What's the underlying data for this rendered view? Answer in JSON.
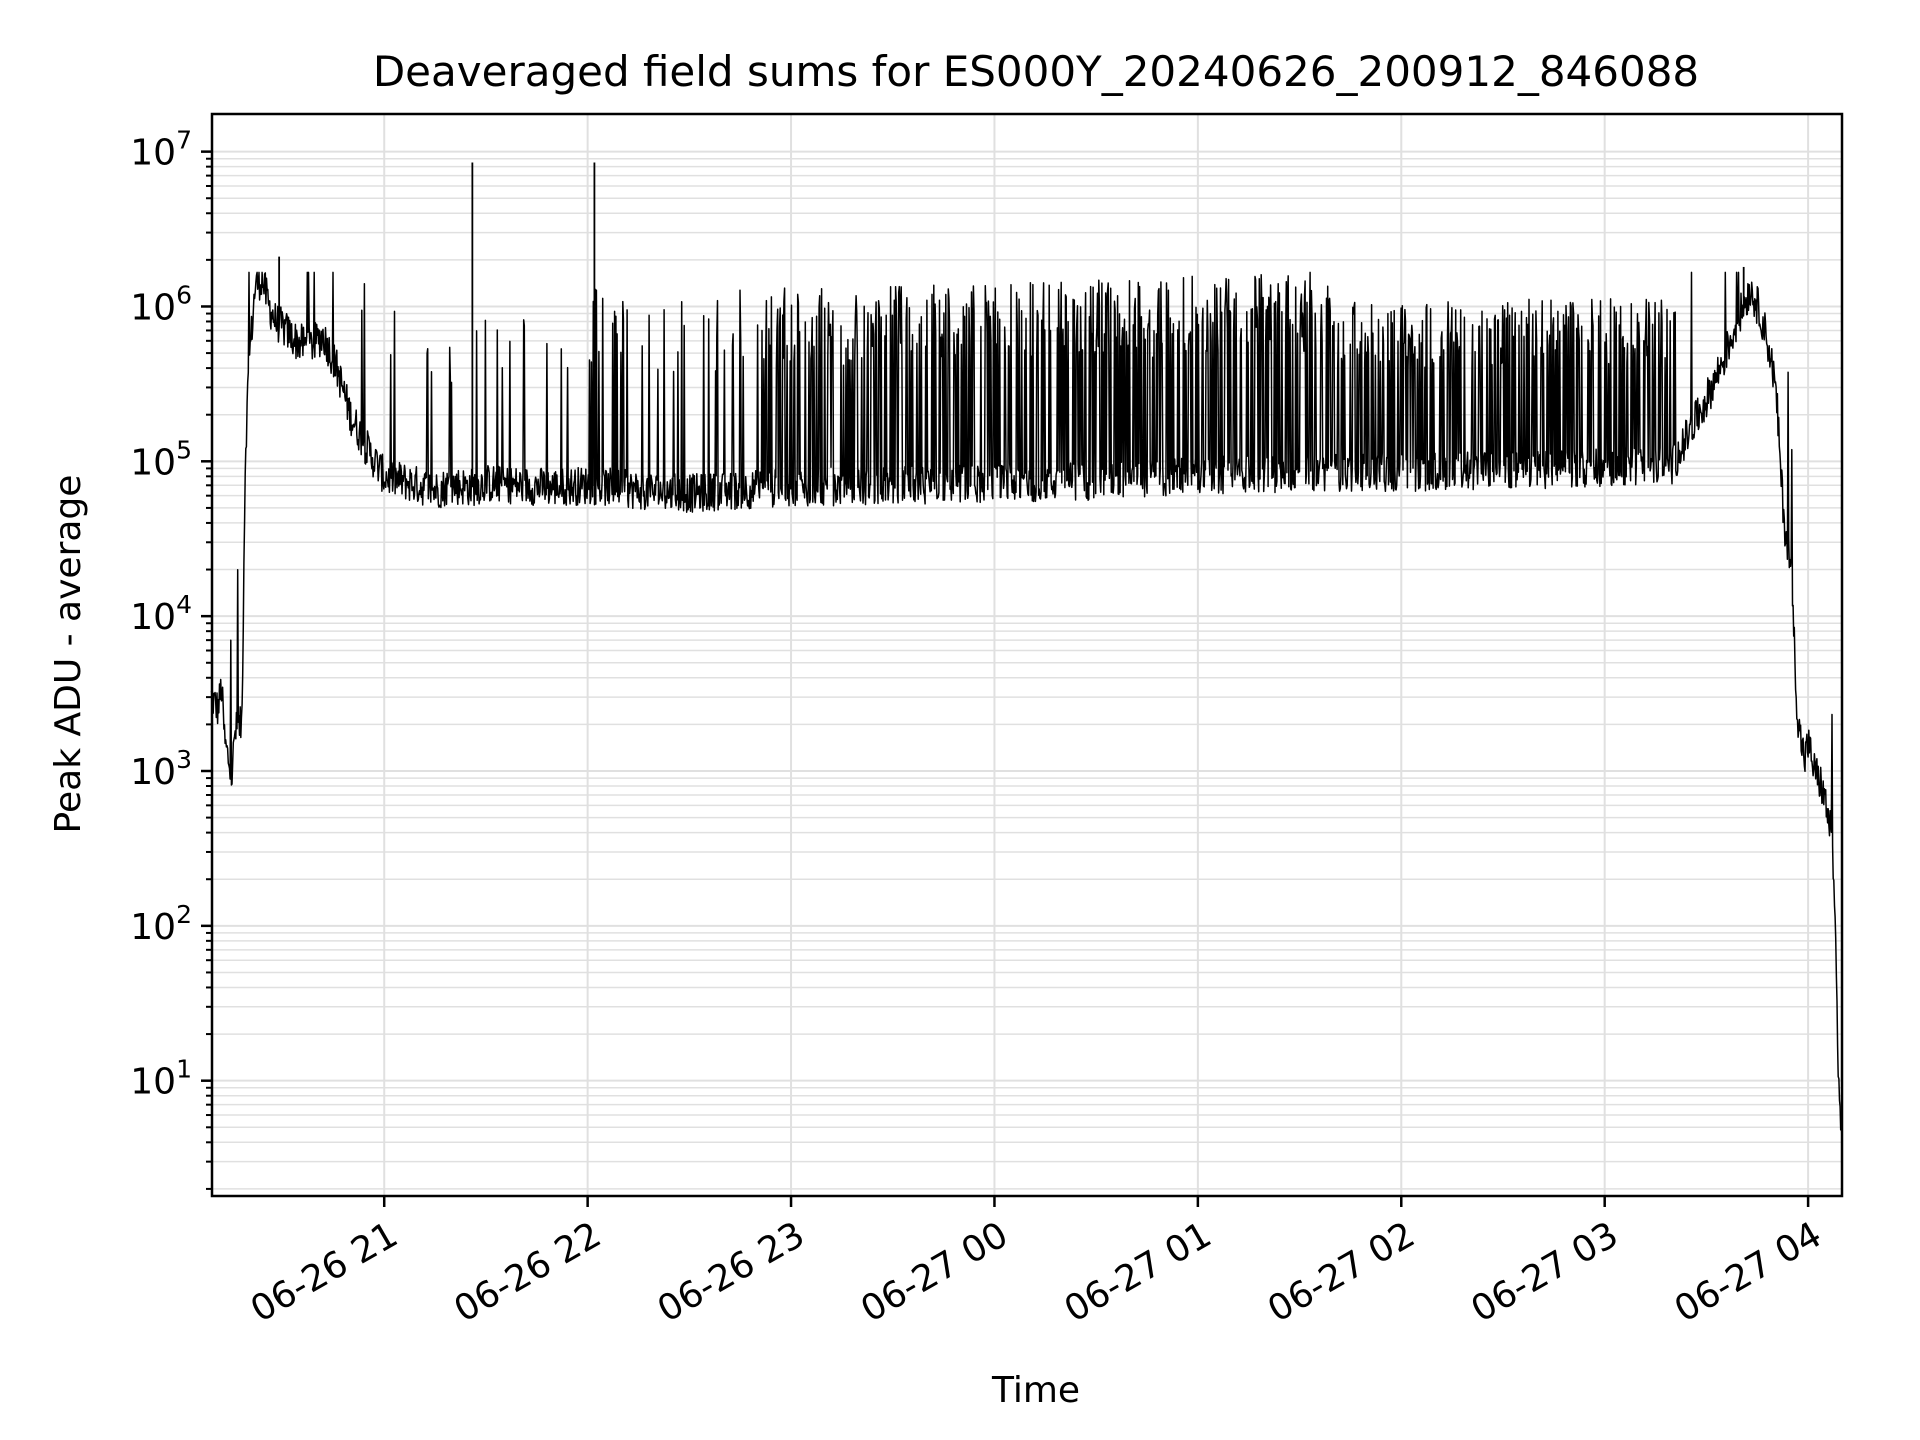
{
  "chart_data": {
    "type": "line",
    "title": "Deaveraged field sums for ES000Y_20240626_200912_846088",
    "xlabel": "Time",
    "ylabel": "Peak ADU - average",
    "xlim": [
      "2024-06-26 20:09:12",
      "2024-06-27 04:10:00"
    ],
    "ylim": [
      1.8,
      17500000
    ],
    "yscale": "log",
    "grid": true,
    "line_color": "#000000",
    "grid_color": "#e0e0e0",
    "x_tick_values": [
      "2024-06-26 21:00",
      "2024-06-26 22:00",
      "2024-06-26 23:00",
      "2024-06-27 00:00",
      "2024-06-27 01:00",
      "2024-06-27 02:00",
      "2024-06-27 03:00",
      "2024-06-27 04:00"
    ],
    "x_tick_labels": [
      "06-26 21",
      "06-26 22",
      "06-26 23",
      "06-27 00",
      "06-27 01",
      "06-27 02",
      "06-27 03",
      "06-27 04"
    ],
    "y_tick_values": [
      10,
      100,
      1000,
      10000,
      100000,
      1000000,
      10000000
    ],
    "y_tick_labels": [
      {
        "base": "10",
        "exp": "1"
      },
      {
        "base": "10",
        "exp": "2"
      },
      {
        "base": "10",
        "exp": "3"
      },
      {
        "base": "10",
        "exp": "4"
      },
      {
        "base": "10",
        "exp": "5"
      },
      {
        "base": "10",
        "exp": "6"
      },
      {
        "base": "10",
        "exp": "7"
      }
    ],
    "series": [
      {
        "x": [
          "2024-06-26 20:09",
          "2024-06-26 20:11",
          "2024-06-26 20:12",
          "2024-06-26 20:13",
          "2024-06-26 20:14",
          "2024-06-26 20:15",
          "2024-06-26 20:16",
          "2024-06-26 20:18",
          "2024-06-26 20:19",
          "2024-06-26 20:20",
          "2024-06-26 20:22",
          "2024-06-26 20:24",
          "2024-06-26 20:26",
          "2024-06-26 20:28",
          "2024-06-26 20:31",
          "2024-06-26 20:34",
          "2024-06-26 20:38",
          "2024-06-26 20:42",
          "2024-06-26 20:46",
          "2024-06-26 20:50",
          "2024-06-26 20:55",
          "2024-06-26 21:00",
          "2024-06-26 21:05",
          "2024-06-26 21:10",
          "2024-06-26 21:15",
          "2024-06-26 21:20",
          "2024-06-26 21:26",
          "2024-06-26 21:30",
          "2024-06-26 21:40",
          "2024-06-26 21:50",
          "2024-06-26 22:00",
          "2024-06-26 22:15",
          "2024-06-26 22:30",
          "2024-06-26 22:45",
          "2024-06-26 23:00",
          "2024-06-26 23:30",
          "2024-06-27 00:00",
          "2024-06-27 00:30",
          "2024-06-27 01:00",
          "2024-06-27 01:30",
          "2024-06-27 02:00",
          "2024-06-27 02:30",
          "2024-06-27 03:00",
          "2024-06-27 03:20",
          "2024-06-27 03:30",
          "2024-06-27 03:35",
          "2024-06-27 03:40",
          "2024-06-27 03:43",
          "2024-06-27 03:46",
          "2024-06-27 03:48",
          "2024-06-27 03:50",
          "2024-06-27 03:51",
          "2024-06-27 03:52",
          "2024-06-27 03:53",
          "2024-06-27 03:55",
          "2024-06-27 03:57",
          "2024-06-27 03:59",
          "2024-06-27 04:00",
          "2024-06-27 04:02",
          "2024-06-27 04:04",
          "2024-06-27 04:06",
          "2024-06-27 04:07",
          "2024-06-27 04:08",
          "2024-06-27 04:09",
          "2024-06-27 04:10"
        ],
        "y": [
          3000,
          2500,
          3500,
          1500,
          1200,
          900,
          1800,
          2000,
          100000,
          400000,
          1400000,
          1500000,
          1000000,
          800000,
          700000,
          600000,
          550000,
          650000,
          400000,
          200000,
          120000,
          80000,
          75000,
          70000,
          65000,
          70000,
          68000,
          72000,
          70000,
          68000,
          70000,
          65000,
          62000,
          65000,
          68000,
          70000,
          72000,
          75000,
          80000,
          85000,
          85000,
          88000,
          90000,
          95000,
          250000,
          450000,
          900000,
          1300000,
          900000,
          600000,
          350000,
          200000,
          80000,
          40000,
          20000,
          2000,
          1200,
          1500,
          1000,
          800,
          500,
          350,
          100,
          10,
          4
        ]
      }
    ],
    "spikes": [
      {
        "x": "2024-06-26 21:26",
        "y": 8500000
      },
      {
        "x": "2024-06-26 22:02",
        "y": 8500000
      },
      {
        "x": "2024-06-26 20:29",
        "y": 2100000
      },
      {
        "x": "2024-06-27 03:41",
        "y": 1800000
      }
    ]
  }
}
